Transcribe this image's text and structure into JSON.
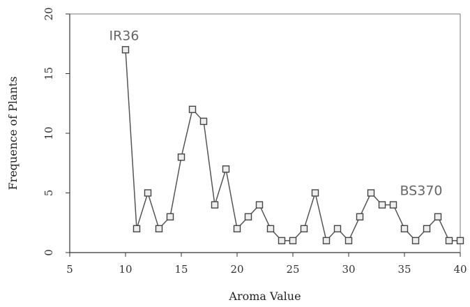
{
  "chart_data": {
    "type": "line",
    "title": "",
    "xlabel": "Aroma Value",
    "ylabel": "Frequence of Plants",
    "xlim": [
      5,
      40
    ],
    "ylim": [
      0,
      20
    ],
    "x_ticks": [
      "5",
      "10",
      "15",
      "20",
      "25",
      "30",
      "35",
      "40"
    ],
    "y_ticks": [
      "0",
      "5",
      "10",
      "15",
      "20"
    ],
    "grid": false,
    "legend": "none",
    "series": [
      {
        "x": [
          10,
          11,
          12,
          13,
          14,
          15,
          16,
          17,
          18,
          19,
          20,
          21,
          22,
          23,
          24,
          25,
          26,
          27,
          28,
          29,
          30,
          31,
          32,
          33,
          34,
          35,
          36,
          37,
          38,
          39,
          40
        ],
        "values": [
          17,
          2,
          5,
          2,
          3,
          8,
          12,
          11,
          4,
          7,
          2,
          3,
          4,
          2,
          1,
          1,
          2,
          5,
          1,
          2,
          1,
          3,
          5,
          4,
          4,
          2,
          1,
          2,
          3,
          1,
          1
        ]
      }
    ],
    "annotations": [
      {
        "text": "IR36",
        "x": 10,
        "y": 17
      },
      {
        "text": "BS370",
        "x": 35,
        "y": 5
      }
    ],
    "colors": {
      "line": "#555555",
      "marker_edge": "#444444",
      "marker_fill": "#eeeeee",
      "axis": "#333333"
    }
  }
}
